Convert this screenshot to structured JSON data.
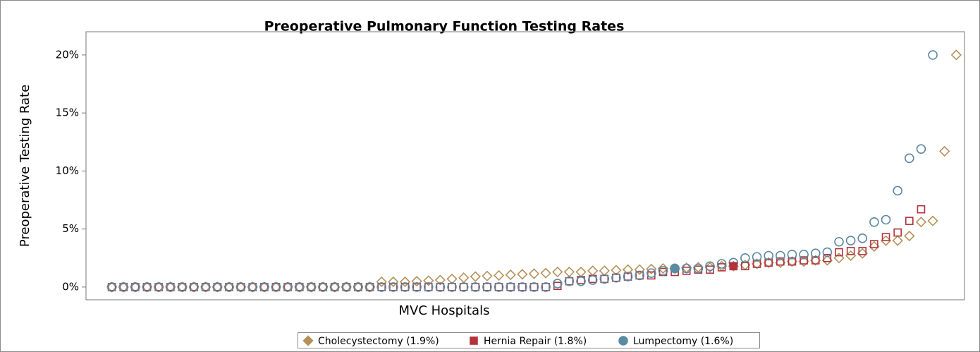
{
  "chart_data": {
    "type": "scatter",
    "title": "Preoperative Pulmonary Function Testing Rates",
    "xlabel": "MVC Hospitals",
    "ylabel": "Preoperative Testing Rate",
    "x": [
      1,
      2,
      3,
      4,
      5,
      6,
      7,
      8,
      9,
      10,
      11,
      12,
      13,
      14,
      15,
      16,
      17,
      18,
      19,
      20,
      21,
      22,
      23,
      24,
      25,
      26,
      27,
      28,
      29,
      30,
      31,
      32,
      33,
      34,
      35,
      36,
      37,
      38,
      39,
      40,
      41,
      42,
      43,
      44,
      45,
      46,
      47,
      48,
      49,
      50,
      51,
      52,
      53,
      54,
      55,
      56,
      57,
      58,
      59,
      60,
      61,
      62,
      63,
      64,
      65,
      66,
      67,
      68,
      69,
      70,
      71,
      72,
      73
    ],
    "xlim": [
      -1.2,
      73.7
    ],
    "ylim": [
      -1.1,
      22
    ],
    "yticks": [
      {
        "value": 0,
        "label": "0%"
      },
      {
        "value": 5,
        "label": "5%"
      },
      {
        "value": 10,
        "label": "10%"
      },
      {
        "value": 15,
        "label": "15%"
      },
      {
        "value": 20,
        "label": "20%"
      }
    ],
    "series": [
      {
        "name": "Cholecystectomy (1.9%)",
        "color": "#b5915a",
        "marker": "diamond",
        "values": [
          0,
          0,
          0,
          0,
          0,
          0,
          0,
          0,
          0,
          0,
          0,
          0,
          0,
          0,
          0,
          0,
          0,
          0,
          0,
          0,
          0,
          0,
          0,
          0.45,
          0.45,
          0.45,
          0.5,
          0.55,
          0.6,
          0.7,
          0.8,
          0.9,
          0.95,
          1.0,
          1.05,
          1.1,
          1.15,
          1.2,
          1.3,
          1.3,
          1.3,
          1.4,
          1.4,
          1.45,
          1.5,
          1.5,
          1.55,
          1.6,
          1.6,
          1.65,
          1.7,
          1.7,
          1.8,
          1.8,
          1.9,
          2.0,
          2.1,
          2.1,
          2.2,
          2.2,
          2.3,
          2.3,
          2.5,
          2.7,
          2.9,
          3.5,
          4.0,
          4.0,
          4.4,
          5.6,
          5.7,
          11.7,
          20.0
        ]
      },
      {
        "name": "Hernia Repair (1.8%)",
        "color": "#b0333d",
        "marker": "square",
        "values": [
          0,
          0,
          0,
          0,
          0,
          0,
          0,
          0,
          0,
          0,
          0,
          0,
          0,
          0,
          0,
          0,
          0,
          0,
          0,
          0,
          0,
          0,
          0,
          0,
          0,
          0,
          0,
          0,
          0,
          0,
          0,
          0,
          0,
          0,
          0,
          0,
          0,
          0,
          0.1,
          0.5,
          0.6,
          0.7,
          0.7,
          0.8,
          0.9,
          1.0,
          1.0,
          1.3,
          1.3,
          1.4,
          1.5,
          1.5,
          1.7,
          1.8,
          1.8,
          2.0,
          2.1,
          2.2,
          2.2,
          2.3,
          2.3,
          2.5,
          3.0,
          3.1,
          3.1,
          3.7,
          4.3,
          4.7,
          5.7,
          6.7,
          null,
          null,
          null
        ],
        "average": {
          "x": 54,
          "value": 1.8
        }
      },
      {
        "name": "Lumpectomy (1.6%)",
        "color": "#5b8aa3",
        "marker": "circle",
        "values": [
          0,
          0,
          0,
          0,
          0,
          0,
          0,
          0,
          0,
          0,
          0,
          0,
          0,
          0,
          0,
          0,
          0,
          0,
          0,
          0,
          0,
          0,
          0,
          0,
          0,
          0,
          0,
          0,
          0,
          0,
          0,
          0,
          0,
          0,
          0,
          0,
          0,
          0,
          0.3,
          0.5,
          0.5,
          0.6,
          0.7,
          0.8,
          0.9,
          1.0,
          1.2,
          1.4,
          1.6,
          1.6,
          1.6,
          1.8,
          2.0,
          2.1,
          2.5,
          2.6,
          2.7,
          2.7,
          2.8,
          2.8,
          2.9,
          3.0,
          3.9,
          4.0,
          4.2,
          5.6,
          5.8,
          8.3,
          11.1,
          11.9,
          20.0,
          null,
          null
        ],
        "average": {
          "x": 49,
          "value": 1.6
        }
      }
    ]
  }
}
